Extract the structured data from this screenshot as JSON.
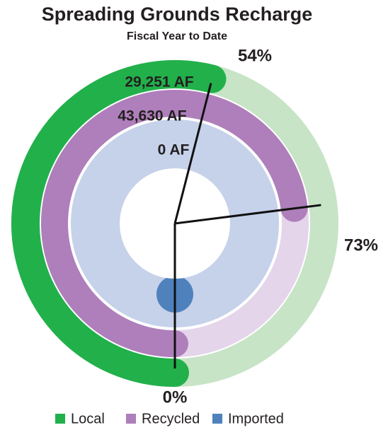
{
  "chart_data": {
    "type": "radial_bar",
    "title": "Spreading Grounds Recharge",
    "subtitle": "Fiscal Year to Date",
    "series": [
      "Local",
      "Recycled",
      "Imported"
    ],
    "values": [
      29251,
      43630,
      0
    ],
    "value_labels": [
      "29,251 AF",
      "43,630 AF",
      "0 AF"
    ],
    "percents": [
      54,
      73,
      0
    ],
    "percent_labels": [
      "54%",
      "73%",
      "0%"
    ],
    "colors": [
      "#22b04b",
      "#ae7fba",
      "#4f81bd"
    ],
    "track_colors": [
      "#c7e4c6",
      "#e4d5ea",
      "#c6d1ea"
    ]
  }
}
